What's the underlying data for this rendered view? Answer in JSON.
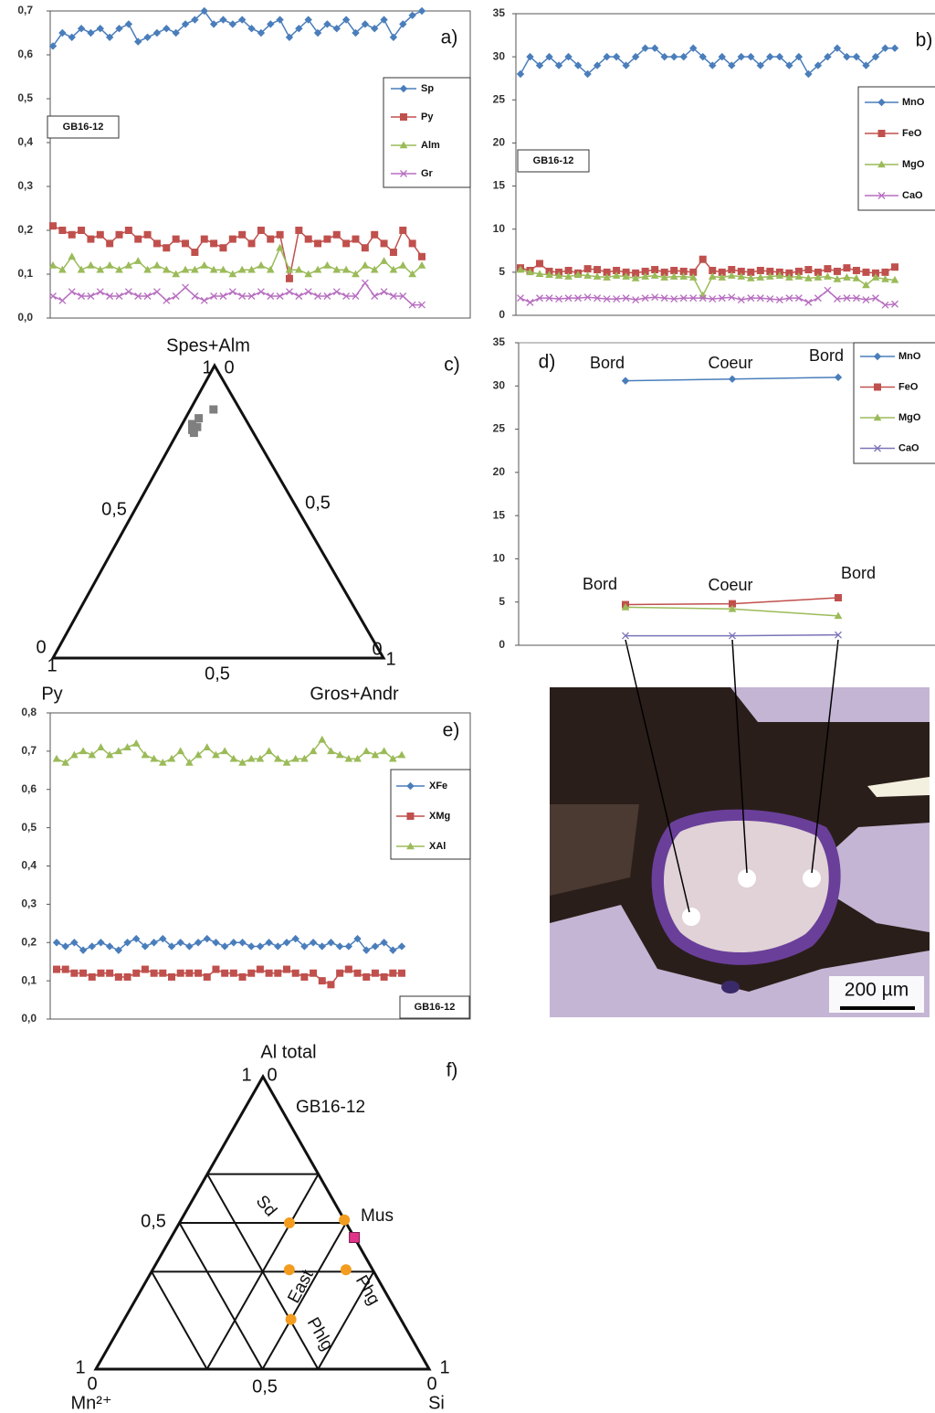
{
  "chart_data": [
    {
      "type": "line",
      "label": "a)",
      "sample": "GB16-12",
      "legend": "right",
      "ylim": [
        0,
        0.7
      ],
      "yticks": [
        {
          "value": 0,
          "label": "0,0"
        },
        {
          "value": 0.1,
          "label": "0,1"
        },
        {
          "value": 0.2,
          "label": "0,2"
        },
        {
          "value": 0.3,
          "label": "0,3"
        },
        {
          "value": 0.4,
          "label": "0,4"
        },
        {
          "value": 0.5,
          "label": "0,5"
        },
        {
          "value": 0.6,
          "label": "0,6"
        },
        {
          "value": 0.7,
          "label": "0,7"
        }
      ],
      "series": [
        {
          "name": "Sp",
          "color": "#4a7ebb",
          "marker": "diamond",
          "values": [
            0.62,
            0.65,
            0.64,
            0.66,
            0.65,
            0.66,
            0.64,
            0.66,
            0.67,
            0.63,
            0.64,
            0.65,
            0.66,
            0.65,
            0.67,
            0.68,
            0.7,
            0.67,
            0.68,
            0.67,
            0.68,
            0.66,
            0.65,
            0.67,
            0.68,
            0.64,
            0.66,
            0.68,
            0.65,
            0.67,
            0.66,
            0.68,
            0.65,
            0.67,
            0.66,
            0.68,
            0.64,
            0.67,
            0.69,
            0.7
          ]
        },
        {
          "name": "Py",
          "color": "#c0504d",
          "marker": "square",
          "values": [
            0.21,
            0.2,
            0.19,
            0.2,
            0.18,
            0.19,
            0.17,
            0.19,
            0.2,
            0.18,
            0.19,
            0.17,
            0.16,
            0.18,
            0.17,
            0.15,
            0.18,
            0.17,
            0.16,
            0.18,
            0.19,
            0.17,
            0.2,
            0.18,
            0.19,
            0.09,
            0.2,
            0.18,
            0.17,
            0.18,
            0.19,
            0.17,
            0.18,
            0.16,
            0.19,
            0.17,
            0.15,
            0.2,
            0.17,
            0.14
          ]
        },
        {
          "name": "Alm",
          "color": "#9bbb59",
          "marker": "triangle",
          "values": [
            0.12,
            0.11,
            0.14,
            0.11,
            0.12,
            0.11,
            0.12,
            0.11,
            0.12,
            0.13,
            0.11,
            0.12,
            0.11,
            0.1,
            0.11,
            0.11,
            0.12,
            0.11,
            0.11,
            0.1,
            0.11,
            0.11,
            0.12,
            0.11,
            0.16,
            0.11,
            0.11,
            0.1,
            0.11,
            0.12,
            0.11,
            0.11,
            0.1,
            0.12,
            0.11,
            0.13,
            0.11,
            0.12,
            0.1,
            0.12
          ]
        },
        {
          "name": "Gr",
          "color": "#b76ec0",
          "marker": "x",
          "values": [
            0.05,
            0.04,
            0.06,
            0.05,
            0.05,
            0.06,
            0.05,
            0.05,
            0.06,
            0.05,
            0.05,
            0.06,
            0.04,
            0.05,
            0.07,
            0.05,
            0.04,
            0.05,
            0.05,
            0.06,
            0.05,
            0.05,
            0.06,
            0.05,
            0.05,
            0.06,
            0.05,
            0.06,
            0.05,
            0.05,
            0.06,
            0.05,
            0.05,
            0.08,
            0.05,
            0.06,
            0.05,
            0.05,
            0.03,
            0.03
          ]
        }
      ]
    },
    {
      "type": "line",
      "label": "b)",
      "sample": "GB16-12",
      "legend": "right",
      "ylim": [
        0,
        35
      ],
      "yticks": [
        0,
        5,
        10,
        15,
        20,
        25,
        30,
        35
      ],
      "series": [
        {
          "name": "MnO",
          "color": "#4a7ebb",
          "marker": "diamond",
          "values": [
            28,
            30,
            29,
            30,
            29,
            30,
            29,
            28,
            29,
            30,
            30,
            29,
            30,
            31,
            31,
            30,
            30,
            30,
            31,
            30,
            29,
            30,
            29,
            30,
            30,
            29,
            30,
            30,
            29,
            30,
            28,
            29,
            30,
            31,
            30,
            30,
            29,
            30,
            31,
            31
          ]
        },
        {
          "name": "FeO",
          "color": "#c0504d",
          "marker": "square",
          "values": [
            5.5,
            5.2,
            6.0,
            5.1,
            5.0,
            5.2,
            4.9,
            5.4,
            5.3,
            5.0,
            5.2,
            5.0,
            4.9,
            5.1,
            5.3,
            5.0,
            5.2,
            5.1,
            5.0,
            6.5,
            5.2,
            5.0,
            5.3,
            5.1,
            5.0,
            5.2,
            5.1,
            5.0,
            4.9,
            5.1,
            5.3,
            5.0,
            5.4,
            5.1,
            5.5,
            5.2,
            5.0,
            4.9,
            5.0,
            5.6
          ]
        },
        {
          "name": "MgO",
          "color": "#9bbb59",
          "marker": "triangle",
          "values": [
            5.3,
            5.0,
            4.8,
            4.7,
            4.6,
            4.5,
            4.7,
            4.6,
            4.5,
            4.4,
            4.6,
            4.5,
            4.3,
            4.5,
            4.6,
            4.4,
            4.5,
            4.5,
            4.4,
            2.3,
            4.5,
            4.4,
            4.6,
            4.5,
            4.3,
            4.4,
            4.5,
            4.6,
            4.4,
            4.5,
            4.3,
            4.4,
            4.5,
            4.2,
            4.4,
            4.3,
            3.5,
            4.4,
            4.2,
            4.1
          ]
        },
        {
          "name": "CaO",
          "color": "#b76ec0",
          "marker": "x",
          "values": [
            2.0,
            1.5,
            2.0,
            2.0,
            1.9,
            2.0,
            2.0,
            2.1,
            2.0,
            1.9,
            1.9,
            2.0,
            1.8,
            2.0,
            2.1,
            2.0,
            1.9,
            2.0,
            2.0,
            2.0,
            1.9,
            2.0,
            2.1,
            1.8,
            2.0,
            2.0,
            1.9,
            1.8,
            2.0,
            2.0,
            1.5,
            2.0,
            2.9,
            1.9,
            2.0,
            2.0,
            1.8,
            2.0,
            1.2,
            1.3
          ]
        }
      ]
    },
    {
      "type": "ternary",
      "label": "c)",
      "vertices": [
        "Spes+Alm",
        "Py",
        "Gros+Andr"
      ],
      "tick_labels": [
        "1",
        "0",
        "0,5",
        "0,5",
        "0",
        "1",
        "0,5",
        "0",
        "1"
      ],
      "series": [
        {
          "color": "#7f7f7f",
          "marker": "square",
          "a": [
            0.82,
            0.8,
            0.79,
            0.78,
            0.77,
            0.85
          ],
          "b": [
            0.14,
            0.17,
            0.16,
            0.18,
            0.18,
            0.08
          ],
          "c": [
            0.04,
            0.03,
            0.05,
            0.04,
            0.05,
            0.07
          ]
        }
      ]
    },
    {
      "type": "line",
      "label": "d)",
      "legend": "right",
      "labels_upper": [
        "Bord",
        "Coeur",
        "Bord"
      ],
      "labels_lower": [
        "Bord",
        "Coeur",
        "Bord"
      ],
      "ylim": [
        0,
        35
      ],
      "yticks": [
        0,
        5,
        10,
        15,
        20,
        25,
        30,
        35
      ],
      "series": [
        {
          "name": "MnO",
          "color": "#4a7ebb",
          "marker": "diamond",
          "values": [
            30.6,
            30.8,
            31.0
          ]
        },
        {
          "name": "FeO",
          "color": "#c0504d",
          "marker": "square",
          "values": [
            4.7,
            4.8,
            5.5
          ]
        },
        {
          "name": "MgO",
          "color": "#9bbb59",
          "marker": "triangle",
          "values": [
            4.4,
            4.2,
            3.4
          ]
        },
        {
          "name": "CaO",
          "color": "#7a74b8",
          "marker": "x",
          "values": [
            1.1,
            1.1,
            1.2
          ]
        }
      ]
    },
    {
      "type": "line",
      "label": "e)",
      "sample": "GB16-12",
      "legend": "right",
      "ylim": [
        0,
        0.8
      ],
      "yticks": [
        {
          "value": 0,
          "label": "0,0"
        },
        {
          "value": 0.1,
          "label": "0,1"
        },
        {
          "value": 0.2,
          "label": "0,2"
        },
        {
          "value": 0.3,
          "label": "0,3"
        },
        {
          "value": 0.4,
          "label": "0,4"
        },
        {
          "value": 0.5,
          "label": "0,5"
        },
        {
          "value": 0.6,
          "label": "0,6"
        },
        {
          "value": 0.7,
          "label": "0,7"
        },
        {
          "value": 0.8,
          "label": "0,8"
        }
      ],
      "series": [
        {
          "name": "XFe",
          "color": "#4a7ebb",
          "marker": "diamond",
          "values": [
            0.2,
            0.19,
            0.2,
            0.18,
            0.19,
            0.2,
            0.19,
            0.18,
            0.2,
            0.21,
            0.19,
            0.2,
            0.21,
            0.19,
            0.2,
            0.19,
            0.2,
            0.21,
            0.2,
            0.19,
            0.2,
            0.2,
            0.19,
            0.19,
            0.2,
            0.19,
            0.2,
            0.21,
            0.19,
            0.2,
            0.19,
            0.2,
            0.19,
            0.19,
            0.21,
            0.18,
            0.19,
            0.2,
            0.18,
            0.19
          ]
        },
        {
          "name": "XMg",
          "color": "#c0504d",
          "marker": "square",
          "values": [
            0.13,
            0.13,
            0.12,
            0.12,
            0.11,
            0.12,
            0.12,
            0.11,
            0.11,
            0.12,
            0.13,
            0.12,
            0.12,
            0.11,
            0.12,
            0.12,
            0.12,
            0.11,
            0.13,
            0.12,
            0.12,
            0.11,
            0.12,
            0.13,
            0.12,
            0.12,
            0.13,
            0.12,
            0.11,
            0.12,
            0.1,
            0.09,
            0.12,
            0.13,
            0.12,
            0.11,
            0.12,
            0.11,
            0.12,
            0.12
          ]
        },
        {
          "name": "XAl",
          "color": "#9bbb59",
          "marker": "triangle",
          "values": [
            0.68,
            0.67,
            0.69,
            0.7,
            0.69,
            0.71,
            0.69,
            0.7,
            0.71,
            0.72,
            0.69,
            0.68,
            0.67,
            0.68,
            0.7,
            0.67,
            0.69,
            0.71,
            0.69,
            0.7,
            0.68,
            0.67,
            0.68,
            0.68,
            0.7,
            0.68,
            0.67,
            0.68,
            0.68,
            0.7,
            0.73,
            0.7,
            0.69,
            0.68,
            0.68,
            0.7,
            0.69,
            0.7,
            0.68,
            0.69
          ]
        }
      ]
    },
    {
      "type": "ternary",
      "label": "f)",
      "sample": "GB16-12",
      "vertices": [
        "Al total",
        "Mn²⁺",
        "Si"
      ],
      "tick_labels": [
        "1",
        "0",
        "0,5",
        "1",
        "0",
        "0,5",
        "0",
        "1"
      ],
      "fields": [
        "Sd",
        "Mus",
        "East",
        "Phg",
        "Phlg"
      ],
      "series": [
        {
          "color": "#f39c1f",
          "marker": "circle",
          "a": [
            0.5,
            0.51,
            0.34,
            0.34,
            0.17
          ],
          "b": [
            0.17,
            0.0,
            0.25,
            0.08,
            0.33
          ],
          "c": [
            0.33,
            0.49,
            0.41,
            0.58,
            0.5
          ]
        },
        {
          "color": "#e0338a",
          "marker": "square",
          "a": [
            0.45
          ],
          "b": [
            0.0
          ],
          "c": [
            0.55
          ]
        }
      ]
    }
  ],
  "photo": {
    "scale": "200 µm"
  }
}
